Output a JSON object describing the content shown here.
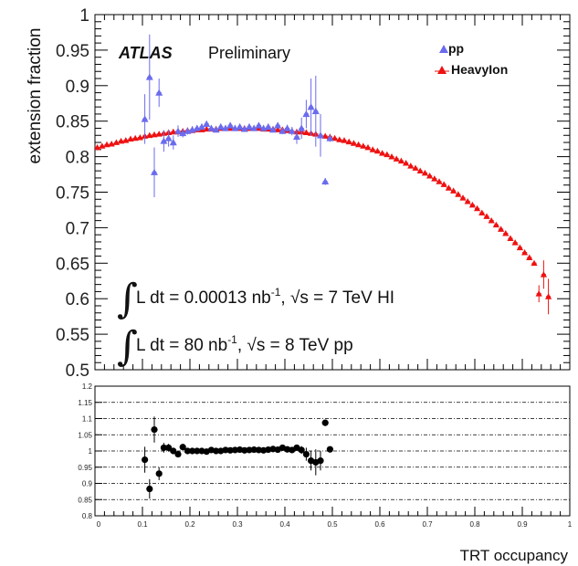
{
  "chart_data": [
    {
      "type": "scatter",
      "ylabel": "extension fraction",
      "ylim": [
        0.5,
        1.0
      ],
      "xlim": [
        0.0,
        1.0
      ],
      "yticks": [
        "1",
        "0.95",
        "0.9",
        "0.85",
        "0.8",
        "0.75",
        "0.7",
        "0.65",
        "0.6",
        "0.55",
        "0.5"
      ],
      "atlas_label": "ATLAS",
      "preliminary_label": "Preliminary",
      "legend": {
        "placement": "top-right",
        "entries": [
          "pp",
          "HeavyIon"
        ]
      },
      "annotations": {
        "hi_prefix": "L dt = 0.00013 nb",
        "hi_suffix": ", √s = 7 TeV HI",
        "pp_prefix": "L dt = 80 nb",
        "pp_suffix": ", √s = 8 TeV pp",
        "exponent": "-1"
      },
      "series": [
        {
          "name": "pp",
          "color": "#6b6bee",
          "marker": "triangle",
          "x": [
            0.105,
            0.115,
            0.125,
            0.135,
            0.145,
            0.155,
            0.165,
            0.175,
            0.185,
            0.195,
            0.205,
            0.215,
            0.225,
            0.235,
            0.245,
            0.255,
            0.265,
            0.275,
            0.285,
            0.295,
            0.305,
            0.315,
            0.325,
            0.335,
            0.345,
            0.355,
            0.365,
            0.375,
            0.385,
            0.395,
            0.405,
            0.415,
            0.425,
            0.435,
            0.445,
            0.455,
            0.465,
            0.475,
            0.485,
            0.495
          ],
          "y": [
            0.853,
            0.912,
            0.778,
            0.89,
            0.822,
            0.826,
            0.82,
            0.836,
            0.833,
            0.836,
            0.838,
            0.84,
            0.842,
            0.846,
            0.84,
            0.838,
            0.842,
            0.84,
            0.844,
            0.84,
            0.842,
            0.839,
            0.842,
            0.84,
            0.844,
            0.84,
            0.842,
            0.838,
            0.844,
            0.836,
            0.84,
            0.836,
            0.828,
            0.84,
            0.86,
            0.87,
            0.864,
            0.83,
            0.765,
            0.826
          ],
          "yerr": [
            0.035,
            0.06,
            0.035,
            0.02,
            0.015,
            0.012,
            0.01,
            0.008,
            0.006,
            0.005,
            0.005,
            0.004,
            0.004,
            0.004,
            0.004,
            0.004,
            0.004,
            0.004,
            0.004,
            0.004,
            0.004,
            0.004,
            0.004,
            0.004,
            0.004,
            0.004,
            0.004,
            0.004,
            0.004,
            0.004,
            0.005,
            0.006,
            0.01,
            0.015,
            0.02,
            0.04,
            0.05,
            0.03,
            0.005,
            0.005
          ]
        },
        {
          "name": "HeavyIon",
          "color": "#ee1111",
          "marker": "triangle",
          "x": [
            0.005,
            0.015,
            0.025,
            0.035,
            0.045,
            0.055,
            0.065,
            0.075,
            0.085,
            0.095,
            0.105,
            0.115,
            0.125,
            0.135,
            0.145,
            0.155,
            0.165,
            0.175,
            0.185,
            0.195,
            0.205,
            0.215,
            0.225,
            0.235,
            0.245,
            0.255,
            0.265,
            0.275,
            0.285,
            0.295,
            0.305,
            0.315,
            0.325,
            0.335,
            0.345,
            0.355,
            0.365,
            0.375,
            0.385,
            0.395,
            0.405,
            0.415,
            0.425,
            0.435,
            0.445,
            0.455,
            0.465,
            0.475,
            0.485,
            0.495,
            0.505,
            0.515,
            0.525,
            0.535,
            0.545,
            0.555,
            0.565,
            0.575,
            0.585,
            0.595,
            0.605,
            0.615,
            0.625,
            0.635,
            0.645,
            0.655,
            0.665,
            0.675,
            0.685,
            0.695,
            0.705,
            0.715,
            0.725,
            0.735,
            0.745,
            0.755,
            0.765,
            0.775,
            0.785,
            0.795,
            0.805,
            0.815,
            0.825,
            0.835,
            0.845,
            0.855,
            0.865,
            0.875,
            0.885,
            0.895,
            0.905,
            0.915,
            0.925,
            0.935,
            0.945,
            0.955
          ],
          "y": [
            0.813,
            0.815,
            0.817,
            0.818,
            0.82,
            0.822,
            0.823,
            0.825,
            0.826,
            0.827,
            0.829,
            0.83,
            0.831,
            0.832,
            0.833,
            0.834,
            0.835,
            0.835,
            0.836,
            0.837,
            0.837,
            0.838,
            0.838,
            0.839,
            0.839,
            0.839,
            0.84,
            0.84,
            0.84,
            0.84,
            0.84,
            0.84,
            0.84,
            0.84,
            0.84,
            0.839,
            0.839,
            0.839,
            0.838,
            0.838,
            0.837,
            0.836,
            0.835,
            0.835,
            0.834,
            0.833,
            0.832,
            0.83,
            0.829,
            0.828,
            0.826,
            0.824,
            0.823,
            0.821,
            0.819,
            0.817,
            0.815,
            0.813,
            0.81,
            0.808,
            0.805,
            0.803,
            0.8,
            0.797,
            0.794,
            0.791,
            0.787,
            0.784,
            0.78,
            0.777,
            0.773,
            0.769,
            0.765,
            0.761,
            0.756,
            0.752,
            0.747,
            0.742,
            0.737,
            0.732,
            0.727,
            0.721,
            0.716,
            0.71,
            0.704,
            0.698,
            0.692,
            0.685,
            0.679,
            0.672,
            0.665,
            0.658,
            0.65,
            0.607,
            0.634,
            0.603
          ],
          "yerr": [
            0,
            0,
            0,
            0,
            0,
            0,
            0,
            0,
            0,
            0,
            0,
            0,
            0,
            0,
            0,
            0,
            0,
            0,
            0,
            0,
            0,
            0,
            0,
            0,
            0,
            0,
            0,
            0,
            0,
            0,
            0,
            0,
            0,
            0,
            0,
            0,
            0,
            0,
            0,
            0,
            0,
            0,
            0,
            0,
            0,
            0,
            0,
            0,
            0,
            0,
            0,
            0,
            0,
            0,
            0,
            0,
            0,
            0,
            0,
            0,
            0,
            0,
            0,
            0,
            0,
            0,
            0,
            0,
            0,
            0,
            0,
            0,
            0,
            0,
            0,
            0,
            0,
            0,
            0,
            0,
            0,
            0,
            0,
            0,
            0,
            0,
            0,
            0,
            0,
            0,
            0,
            0,
            0,
            0.012,
            0.02,
            0.025
          ]
        }
      ]
    },
    {
      "type": "scatter",
      "xlabel": "TRT occupancy",
      "ylim": [
        0.8,
        1.2
      ],
      "xlim": [
        0.0,
        1.0
      ],
      "yticks": [
        "1.2",
        "1.15",
        "1.1",
        "1.05",
        "1",
        "0.95",
        "0.9",
        "0.85",
        "0.8"
      ],
      "xticks": [
        "0",
        "0.1",
        "0.2",
        "0.3",
        "0.4",
        "0.5",
        "0.6",
        "0.7",
        "0.8",
        "0.9",
        "1"
      ],
      "grid": "dashed horizontal",
      "series": [
        {
          "color": "#000000",
          "marker": "circle",
          "x": [
            0.105,
            0.115,
            0.125,
            0.135,
            0.145,
            0.155,
            0.165,
            0.175,
            0.185,
            0.195,
            0.205,
            0.215,
            0.225,
            0.235,
            0.245,
            0.255,
            0.265,
            0.275,
            0.285,
            0.295,
            0.305,
            0.315,
            0.325,
            0.335,
            0.345,
            0.355,
            0.365,
            0.375,
            0.385,
            0.395,
            0.405,
            0.415,
            0.425,
            0.435,
            0.445,
            0.455,
            0.465,
            0.475,
            0.485,
            0.495
          ],
          "y": [
            0.973,
            0.883,
            1.066,
            0.93,
            1.01,
            1.01,
            1.0,
            0.99,
            1.012,
            1.0,
            1.0,
            1.0,
            1.0,
            0.998,
            1.003,
            1.0,
            1.0,
            1.003,
            1.002,
            1.003,
            1.004,
            1.002,
            1.003,
            1.004,
            1.003,
            1.002,
            1.004,
            1.006,
            1.004,
            1.01,
            1.005,
            1.003,
            1.01,
            1.003,
            0.99,
            0.97,
            0.965,
            0.97,
            1.087,
            1.005
          ],
          "yerr": [
            0.04,
            0.03,
            0.04,
            0.02,
            0.015,
            0.012,
            0.01,
            0.008,
            0.006,
            0.005,
            0.005,
            0.004,
            0.004,
            0.004,
            0.004,
            0.004,
            0.004,
            0.004,
            0.004,
            0.004,
            0.004,
            0.004,
            0.004,
            0.004,
            0.004,
            0.004,
            0.004,
            0.004,
            0.004,
            0.004,
            0.005,
            0.006,
            0.008,
            0.012,
            0.02,
            0.03,
            0.04,
            0.03,
            0.01,
            0.005
          ]
        }
      ]
    }
  ]
}
